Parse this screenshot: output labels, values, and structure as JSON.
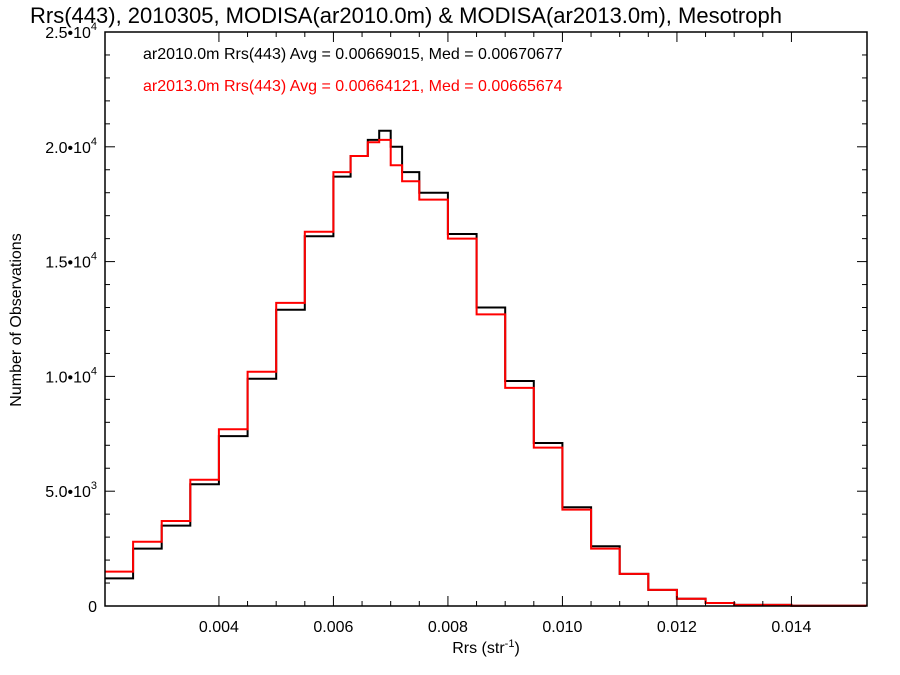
{
  "chart_data": {
    "type": "line",
    "title": "Rrs(443), 2010305, MODISA(ar2010.0m) & MODISA(ar2013.0m), Mesotroph",
    "xlabel": "Rrs (str",
    "xlabel_sup": "-1",
    "xlabel_end": ")",
    "ylabel": "Number of Observations",
    "xlim": [
      0.00201,
      0.01532
    ],
    "ylim": [
      0,
      25000
    ],
    "grid": false,
    "x_ticks": [
      {
        "value": 0.004,
        "label": "0.004"
      },
      {
        "value": 0.006,
        "label": "0.006"
      },
      {
        "value": 0.008,
        "label": "0.008"
      },
      {
        "value": 0.01,
        "label": "0.010"
      },
      {
        "value": 0.012,
        "label": "0.012"
      },
      {
        "value": 0.014,
        "label": "0.014"
      }
    ],
    "y_ticks": [
      {
        "value": 0,
        "mant": "0",
        "exp": ""
      },
      {
        "value": 5000,
        "mant": "5.0•10",
        "exp": "3"
      },
      {
        "value": 10000,
        "mant": "1.0•10",
        "exp": "4"
      },
      {
        "value": 15000,
        "mant": "1.5•10",
        "exp": "4"
      },
      {
        "value": 20000,
        "mant": "2.0•10",
        "exp": "4"
      },
      {
        "value": 25000,
        "mant": "2.5•10",
        "exp": "4"
      }
    ],
    "legend_placement": "top-left",
    "series": [
      {
        "name": "ar2010.0m Rrs(443) Avg = 0.00669015, Med = 0.00670677",
        "color": "#000000",
        "x": [
          0.00201,
          0.0025,
          0.003,
          0.0035,
          0.004,
          0.0045,
          0.005,
          0.0055,
          0.006,
          0.0063,
          0.0066,
          0.0068,
          0.007,
          0.0072,
          0.0075,
          0.008,
          0.0085,
          0.009,
          0.0095,
          0.01,
          0.0105,
          0.011,
          0.0115,
          0.012,
          0.0125,
          0.013,
          0.014,
          0.0153
        ],
        "values": [
          1200,
          2500,
          3500,
          5300,
          7400,
          9900,
          12900,
          16100,
          18700,
          19600,
          20300,
          20700,
          20000,
          18900,
          18000,
          16200,
          13000,
          9800,
          7100,
          4300,
          2600,
          1400,
          700,
          320,
          130,
          50,
          10,
          0
        ]
      },
      {
        "name": "ar2013.0m Rrs(443) Avg = 0.00664121, Med = 0.00665674",
        "color": "#ff0000",
        "x": [
          0.00201,
          0.0025,
          0.003,
          0.0035,
          0.004,
          0.0045,
          0.005,
          0.0055,
          0.006,
          0.0063,
          0.0066,
          0.0068,
          0.007,
          0.0072,
          0.0075,
          0.008,
          0.0085,
          0.009,
          0.0095,
          0.01,
          0.0105,
          0.011,
          0.0115,
          0.012,
          0.0125,
          0.013,
          0.014,
          0.0153
        ],
        "values": [
          1500,
          2800,
          3700,
          5500,
          7700,
          10200,
          13200,
          16300,
          18900,
          19600,
          20200,
          20300,
          19200,
          18500,
          17700,
          16000,
          12700,
          9500,
          6900,
          4200,
          2500,
          1400,
          700,
          320,
          130,
          50,
          10,
          0
        ]
      }
    ]
  }
}
